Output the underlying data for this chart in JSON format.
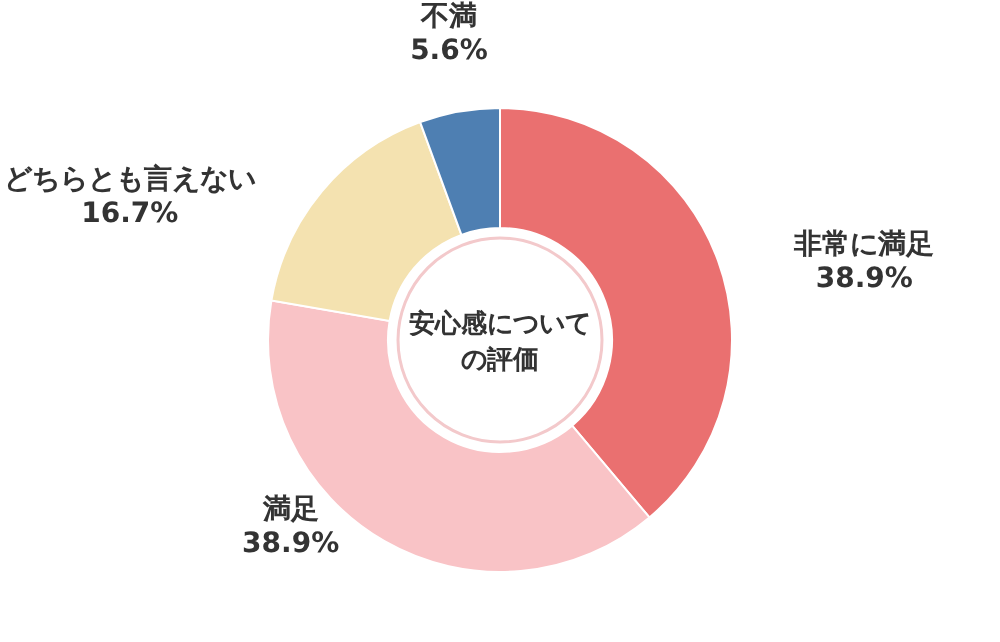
{
  "chart_data": {
    "type": "donut",
    "title": "安心感についての評価",
    "categories": [
      "非常に満足",
      "満足",
      "どちらとも言えない",
      "不満"
    ],
    "values": [
      38.9,
      38.9,
      16.7,
      5.6
    ],
    "value_labels": [
      "38.9%",
      "38.9%",
      "16.7%",
      "5.6%"
    ],
    "colors": [
      "#ea7070",
      "#f9c3c6",
      "#f4e2b0",
      "#4e7fb2"
    ],
    "legend": false
  }
}
